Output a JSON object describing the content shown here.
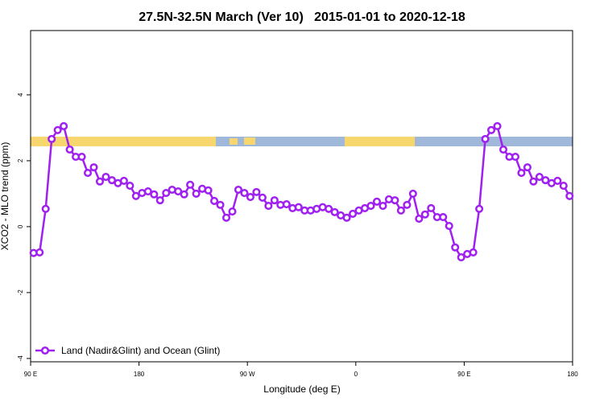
{
  "chart_data": {
    "type": "line",
    "title": "27.5N-32.5N March (Ver 10)   2015-01-01 to 2020-12-18",
    "x_label": "Longitude (deg E)",
    "y_label": "XCO2 - MLO trend (ppm)",
    "xlim": [
      90,
      540
    ],
    "ylim": [
      -4.1,
      5.95
    ],
    "xticks": [
      {
        "value": 90,
        "label": "90 E"
      },
      180,
      {
        "value": 270,
        "label": "90 W"
      },
      {
        "value": 360,
        "label": "0"
      },
      {
        "value": 450,
        "label": "90 E"
      },
      {
        "value": 540,
        "label": "180"
      }
    ],
    "yticks": [
      -4,
      -2,
      0,
      2,
      4
    ],
    "legend": "bottom-left",
    "x": [
      92.5,
      97.5,
      102.5,
      107.5,
      112.5,
      117.5,
      122.5,
      127.5,
      132.5,
      137.5,
      142.5,
      147.5,
      152.5,
      157.5,
      162.5,
      167.5,
      172.5,
      177.5,
      182.5,
      187.5,
      192.5,
      197.5,
      202.5,
      207.5,
      212.5,
      217.5,
      222.5,
      227.5,
      232.5,
      237.5,
      242.5,
      247.5,
      252.5,
      257.5,
      262.5,
      267.5,
      272.5,
      277.5,
      282.5,
      287.5,
      292.5,
      297.5,
      302.5,
      307.5,
      312.5,
      317.5,
      322.5,
      327.5,
      332.5,
      337.5,
      342.5,
      347.5,
      352.5,
      357.5,
      362.5,
      367.5,
      372.5,
      377.5,
      382.5,
      387.5,
      392.5,
      397.5,
      402.5,
      407.5,
      412.5,
      417.5,
      422.5,
      427.5,
      432.5,
      437.5,
      442.5,
      447.5,
      452.5,
      457.5,
      462.5,
      467.5,
      472.5,
      477.5,
      482.5,
      487.5,
      492.5,
      497.5,
      502.5,
      507.5,
      512.5,
      517.5,
      522.5,
      527.5,
      532.5,
      537.5
    ],
    "series": [
      {
        "name": "Land (Nadir&Glint) and Ocean (Glint)",
        "color": "#a020f0",
        "values": [
          -0.8,
          -0.78,
          0.54,
          2.66,
          2.93,
          3.05,
          2.34,
          2.12,
          2.12,
          1.63,
          1.8,
          1.37,
          1.51,
          1.41,
          1.32,
          1.39,
          1.24,
          0.93,
          1.02,
          1.07,
          0.98,
          0.8,
          1.02,
          1.12,
          1.07,
          0.98,
          1.27,
          1.0,
          1.15,
          1.1,
          0.78,
          0.66,
          0.27,
          0.46,
          1.12,
          1.02,
          0.9,
          1.05,
          0.88,
          0.63,
          0.8,
          0.66,
          0.68,
          0.56,
          0.59,
          0.49,
          0.49,
          0.54,
          0.59,
          0.54,
          0.44,
          0.34,
          0.27,
          0.39,
          0.49,
          0.56,
          0.63,
          0.76,
          0.63,
          0.83,
          0.8,
          0.49,
          0.66,
          1.0,
          0.24,
          0.37,
          0.56,
          0.29,
          0.29,
          0.02,
          -0.63,
          -0.93,
          -0.83,
          -0.78,
          0.54,
          2.66,
          2.93,
          3.05,
          2.34,
          2.12,
          2.12,
          1.63,
          1.8,
          1.37,
          1.51,
          1.41,
          1.32,
          1.39,
          1.24,
          0.93
        ]
      }
    ]
  }
}
